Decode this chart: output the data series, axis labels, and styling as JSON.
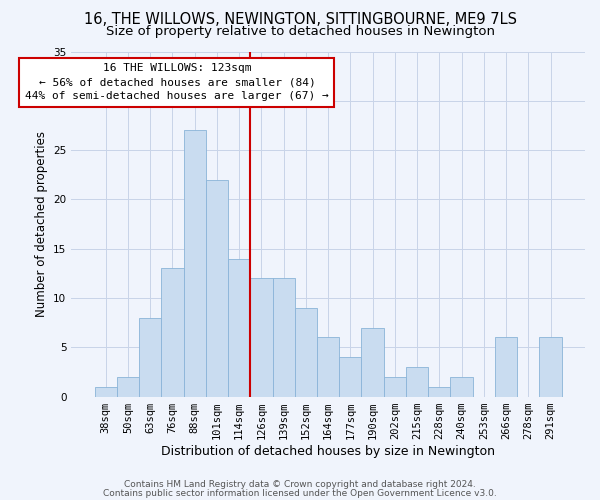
{
  "title": "16, THE WILLOWS, NEWINGTON, SITTINGBOURNE, ME9 7LS",
  "subtitle": "Size of property relative to detached houses in Newington",
  "xlabel": "Distribution of detached houses by size in Newington",
  "ylabel": "Number of detached properties",
  "categories": [
    "38sqm",
    "50sqm",
    "63sqm",
    "76sqm",
    "88sqm",
    "101sqm",
    "114sqm",
    "126sqm",
    "139sqm",
    "152sqm",
    "164sqm",
    "177sqm",
    "190sqm",
    "202sqm",
    "215sqm",
    "228sqm",
    "240sqm",
    "253sqm",
    "266sqm",
    "278sqm",
    "291sqm"
  ],
  "values": [
    1,
    2,
    8,
    13,
    27,
    22,
    14,
    12,
    12,
    9,
    6,
    4,
    7,
    2,
    3,
    1,
    2,
    0,
    6,
    0,
    6
  ],
  "bar_color": "#c9dcf0",
  "bar_edge_color": "#8ab4d8",
  "highlight_line_color": "#cc0000",
  "annotation_box_text": "16 THE WILLOWS: 123sqm\n← 56% of detached houses are smaller (84)\n44% of semi-detached houses are larger (67) →",
  "annotation_box_color": "#cc0000",
  "ylim": [
    0,
    35
  ],
  "yticks": [
    0,
    5,
    10,
    15,
    20,
    25,
    30,
    35
  ],
  "background_color": "#f0f4fc",
  "grid_color": "#c8d4e8",
  "footer_line1": "Contains HM Land Registry data © Crown copyright and database right 2024.",
  "footer_line2": "Contains public sector information licensed under the Open Government Licence v3.0.",
  "title_fontsize": 10.5,
  "subtitle_fontsize": 9.5,
  "xlabel_fontsize": 9,
  "ylabel_fontsize": 8.5,
  "tick_fontsize": 7.5,
  "annotation_fontsize": 8,
  "footer_fontsize": 6.5
}
